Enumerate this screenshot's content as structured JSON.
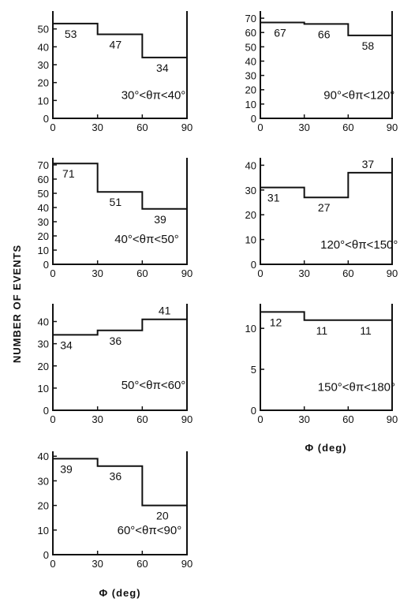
{
  "ylabel": "NUMBER OF EVENTS",
  "xlabel": "Φ (deg)",
  "chart_data": [
    {
      "type": "bar",
      "panel": "30-40",
      "condition": "30°<θπ<40°",
      "categories": [
        "0-30",
        "30-60",
        "60-90"
      ],
      "values": [
        53,
        47,
        34
      ],
      "value_labels": [
        "53",
        "47",
        "34"
      ],
      "x_ticks": [
        "0",
        "30",
        "60",
        "90"
      ],
      "y_ticks": [
        "0",
        "10",
        "20",
        "30",
        "40",
        "50"
      ],
      "xlim": [
        0,
        90
      ],
      "ylim": [
        0,
        60
      ]
    },
    {
      "type": "bar",
      "panel": "90-120",
      "condition": "90°<θπ<120°",
      "categories": [
        "0-30",
        "30-60",
        "60-90"
      ],
      "values": [
        67,
        66,
        58
      ],
      "value_labels": [
        "67",
        "66",
        "58"
      ],
      "x_ticks": [
        "0",
        "30",
        "60",
        "90"
      ],
      "y_ticks": [
        "0",
        "10",
        "20",
        "30",
        "40",
        "50",
        "60",
        "70"
      ],
      "xlim": [
        0,
        90
      ],
      "ylim": [
        0,
        75
      ]
    },
    {
      "type": "bar",
      "panel": "40-50",
      "condition": "40°<θπ<50°",
      "categories": [
        "0-30",
        "30-60",
        "60-90"
      ],
      "values": [
        71,
        51,
        39
      ],
      "value_labels": [
        "71",
        "51",
        "39"
      ],
      "x_ticks": [
        "0",
        "30",
        "60",
        "90"
      ],
      "y_ticks": [
        "0",
        "10",
        "20",
        "30",
        "40",
        "50",
        "60",
        "70"
      ],
      "xlim": [
        0,
        90
      ],
      "ylim": [
        0,
        75
      ]
    },
    {
      "type": "bar",
      "panel": "120-150",
      "condition": "120°<θπ<150°",
      "categories": [
        "0-30",
        "30-60",
        "60-90"
      ],
      "values": [
        31,
        27,
        37
      ],
      "value_labels": [
        "31",
        "27",
        "37"
      ],
      "x_ticks": [
        "0",
        "30",
        "60",
        "90"
      ],
      "y_ticks": [
        "0",
        "10",
        "20",
        "30",
        "40"
      ],
      "xlim": [
        0,
        90
      ],
      "ylim": [
        0,
        43
      ]
    },
    {
      "type": "bar",
      "panel": "50-60",
      "condition": "50°<θπ<60°",
      "categories": [
        "0-30",
        "30-60",
        "60-90"
      ],
      "values": [
        34,
        36,
        41
      ],
      "value_labels": [
        "34",
        "36",
        "41"
      ],
      "x_ticks": [
        "0",
        "30",
        "60",
        "90"
      ],
      "y_ticks": [
        "0",
        "10",
        "20",
        "30",
        "40"
      ],
      "xlim": [
        0,
        90
      ],
      "ylim": [
        0,
        48
      ]
    },
    {
      "type": "bar",
      "panel": "150-180",
      "condition": "150°<θπ<180°",
      "categories": [
        "0-30",
        "30-60",
        "60-90"
      ],
      "values": [
        12,
        11,
        11
      ],
      "value_labels": [
        "12",
        "11",
        "11"
      ],
      "x_ticks": [
        "0",
        "30",
        "60",
        "90"
      ],
      "y_ticks": [
        "0",
        "5",
        "10"
      ],
      "xlim": [
        0,
        90
      ],
      "ylim": [
        0,
        13
      ]
    },
    {
      "type": "bar",
      "panel": "60-90",
      "condition": "60°<θπ<90°",
      "categories": [
        "0-30",
        "30-60",
        "60-90"
      ],
      "values": [
        39,
        36,
        20
      ],
      "value_labels": [
        "39",
        "36",
        "20"
      ],
      "x_ticks": [
        "0",
        "30",
        "60",
        "90"
      ],
      "y_ticks": [
        "0",
        "10",
        "20",
        "30",
        "40"
      ],
      "xlim": [
        0,
        90
      ],
      "ylim": [
        0,
        42
      ]
    }
  ]
}
